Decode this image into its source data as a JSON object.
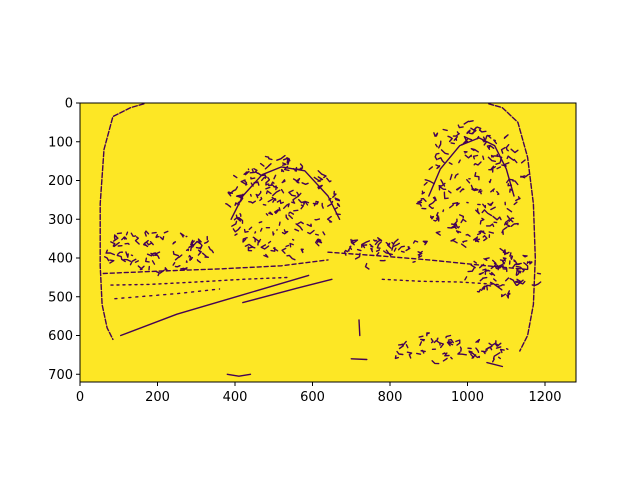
{
  "chart_data": {
    "type": "heatmap",
    "title": "",
    "xlabel": "",
    "ylabel": "",
    "image_width": 1280,
    "image_height": 720,
    "xlim": [
      0,
      1280
    ],
    "ylim": [
      720,
      0
    ],
    "colormap": "viridis",
    "values_present": [
      0,
      1
    ],
    "background_value": 1,
    "background_color": "#fde725",
    "edge_color": "#440154",
    "description_of_content": "binary edge map of a road scene seen through a wide-angle lens",
    "x_ticks": [
      {
        "value": 0,
        "label": "0"
      },
      {
        "value": 200,
        "label": "200"
      },
      {
        "value": 400,
        "label": "400"
      },
      {
        "value": 600,
        "label": "600"
      },
      {
        "value": 800,
        "label": "800"
      },
      {
        "value": 1000,
        "label": "1000"
      },
      {
        "value": 1200,
        "label": "1200"
      }
    ],
    "y_ticks": [
      {
        "value": 0,
        "label": "0"
      },
      {
        "value": 100,
        "label": "100"
      },
      {
        "value": 200,
        "label": "200"
      },
      {
        "value": 300,
        "label": "300"
      },
      {
        "value": 400,
        "label": "400"
      },
      {
        "value": 500,
        "label": "500"
      },
      {
        "value": 600,
        "label": "600"
      },
      {
        "value": 700,
        "label": "700"
      }
    ]
  }
}
